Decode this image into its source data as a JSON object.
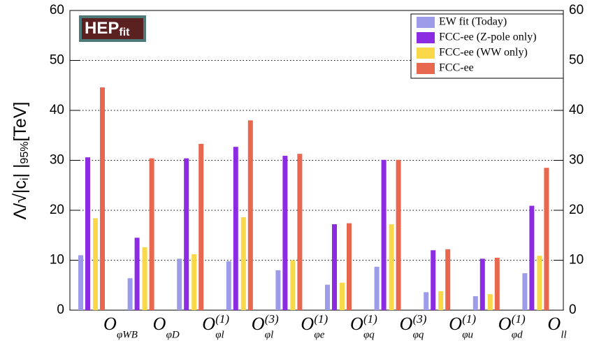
{
  "chart_data": {
    "type": "bar",
    "logo": {
      "main": "HEP",
      "small": "fit"
    },
    "y_label": {
      "main": "Λ/√|c",
      "sub1": "i",
      "mid": "| |",
      "sub2": "95%",
      "tail": "[TeV]"
    },
    "categories": [
      {
        "main": "O",
        "sub": "φWB"
      },
      {
        "main": "O",
        "sub": "φD"
      },
      {
        "main": "O",
        "sup": "(1)",
        "sub": "φl"
      },
      {
        "main": "O",
        "sup": "(3)",
        "sub": "φl"
      },
      {
        "main": "O",
        "sup": "(1)",
        "sub": "φe"
      },
      {
        "main": "O",
        "sup": "(1)",
        "sub": "φq"
      },
      {
        "main": "O",
        "sup": "(3)",
        "sub": "φq"
      },
      {
        "main": "O",
        "sup": "(1)",
        "sub": "φu"
      },
      {
        "main": "O",
        "sup": "(1)",
        "sub": "φd"
      },
      {
        "main": "O",
        "sub": "ll"
      }
    ],
    "series": [
      {
        "name": "EW fit (Today)",
        "color": "#9c9ce8",
        "values": [
          11.0,
          6.4,
          10.3,
          9.8,
          8.0,
          5.1,
          8.7,
          3.6,
          2.8,
          7.4
        ]
      },
      {
        "name": "FCC-ee (Z-pole only)",
        "color": "#8b2be2",
        "values": [
          30.6,
          14.5,
          30.4,
          32.7,
          30.9,
          17.2,
          30.1,
          12.0,
          10.3,
          20.9
        ]
      },
      {
        "name": "FCC-ee (WW only)",
        "color": "#f9d84a",
        "values": [
          18.4,
          12.6,
          11.2,
          18.6,
          10.0,
          5.5,
          17.2,
          3.8,
          3.2,
          10.9
        ]
      },
      {
        "name": "FCC-ee",
        "color": "#e8674f",
        "values": [
          44.6,
          30.4,
          33.3,
          38.0,
          31.3,
          17.4,
          30.1,
          12.2,
          10.5,
          28.5
        ]
      }
    ],
    "ylim": [
      0,
      60
    ],
    "yticks": [
      0,
      10,
      20,
      30,
      40,
      50,
      60
    ],
    "grid": true,
    "legend": "top-right"
  }
}
